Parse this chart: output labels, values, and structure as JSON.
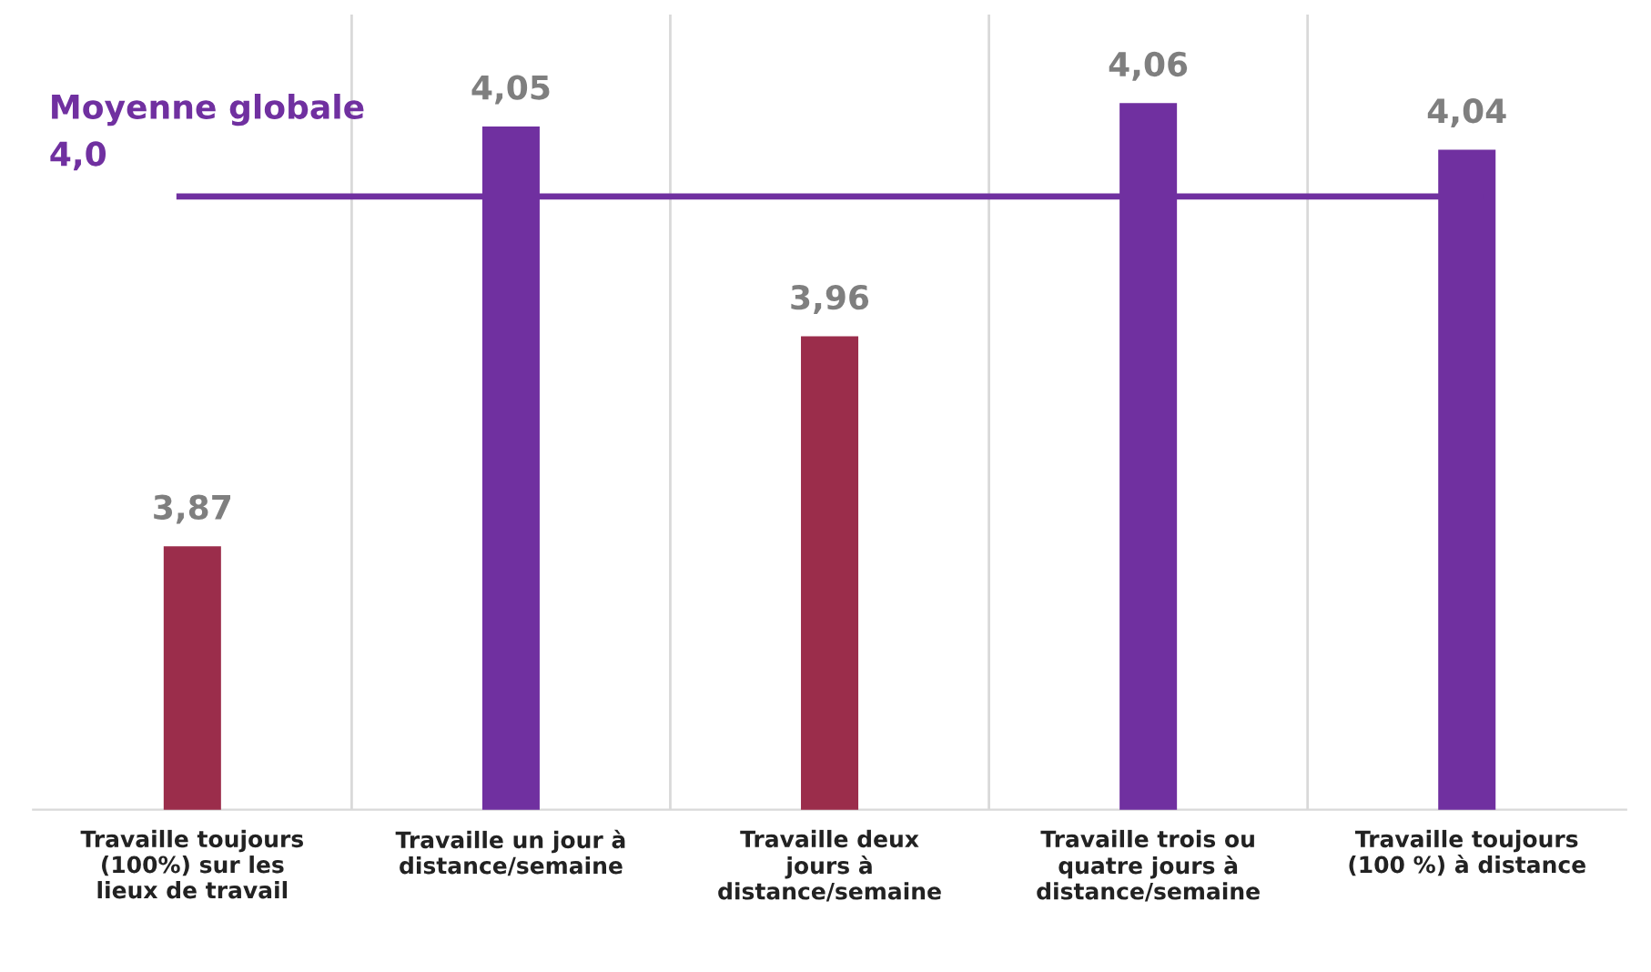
{
  "chart_data": {
    "type": "bar",
    "categories": [
      "Travaille toujours\n(100%) sur les\nlieux de travail",
      "Travaille un jour à\ndistance/semaine",
      "Travaille deux\njours à\ndistance/semaine",
      "Travaille trois ou\nquatre jours à\ndistance/semaine",
      "Travaille toujours\n(100 %) à distance"
    ],
    "values": [
      3.87,
      4.05,
      3.96,
      4.06,
      4.04
    ],
    "value_labels": [
      "3,87",
      "4,05",
      "3,96",
      "4,06",
      "4,04"
    ],
    "colors": [
      "#9b2d4b",
      "#7030a0",
      "#9b2d4b",
      "#7030a0",
      "#7030a0"
    ],
    "ylim": [
      3.757,
      4.098
    ],
    "tick_labels": "x",
    "grid": "x",
    "ref_lines": [
      {
        "axis": "y",
        "value": 4.02,
        "label": "Moyenne globale\n4,0",
        "color": "#7030a0"
      }
    ]
  }
}
